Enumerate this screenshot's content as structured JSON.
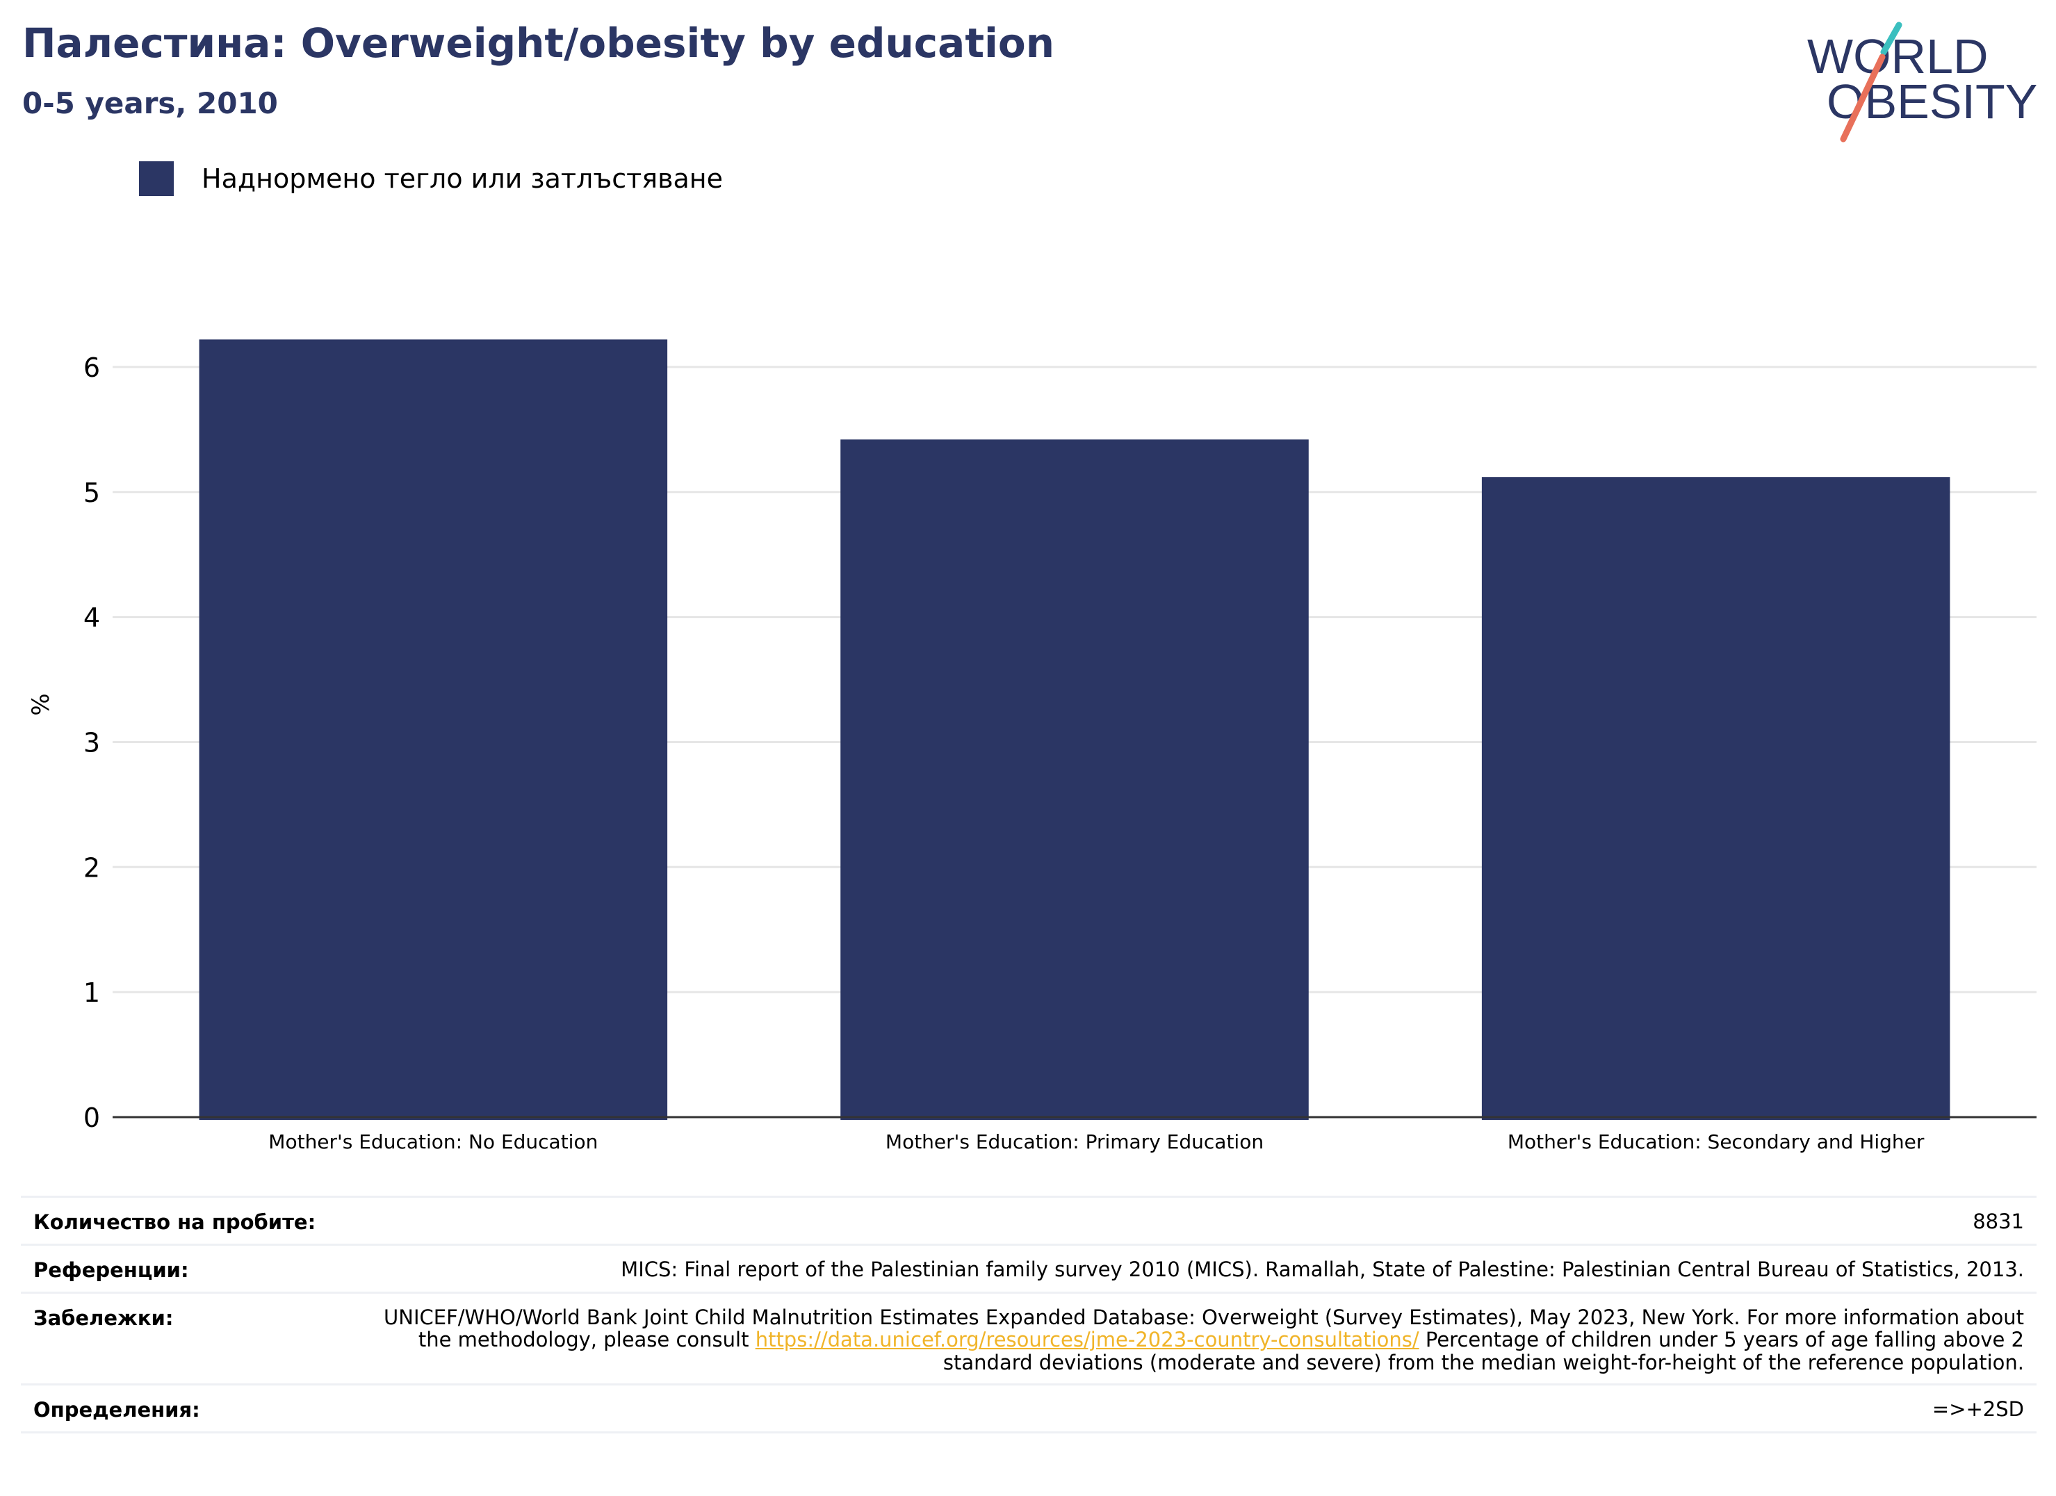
{
  "header": {
    "title": "Палестина: Overweight/obesity by education",
    "subtitle": "0-5 years, 2010"
  },
  "logo": {
    "line1": "WORLD",
    "line2": "OBESITY"
  },
  "colors": {
    "bar": "#2b3664",
    "title": "#2b3664",
    "grid": "#e6e6e6",
    "axis": "#333333",
    "link": "#f0b429",
    "logo_teal": "#3bbfbf",
    "logo_coral": "#e8705a"
  },
  "chart_data": {
    "type": "bar",
    "title": "",
    "xlabel": "",
    "ylabel": "%",
    "ylim": [
      0,
      6.6
    ],
    "yticks": [
      0,
      1,
      2,
      3,
      4,
      5,
      6
    ],
    "grid": true,
    "legend_position": "top-left",
    "categories": [
      "Mother's Education: No Education",
      "Mother's Education: Primary Education",
      "Mother's Education: Secondary and Higher"
    ],
    "series": [
      {
        "name": "Наднормено тегло или затлъстяване",
        "values": [
          6.22,
          5.42,
          5.12
        ]
      }
    ]
  },
  "info": {
    "sample_size_label": "Количество на пробите:",
    "sample_size_value": "8831",
    "references_label": "Референции:",
    "references_value": "MICS: Final report of the Palestinian family survey 2010 (MICS). Ramallah, State of Palestine: Palestinian Central Bureau of Statistics, 2013.",
    "notes_label": "Забележки:",
    "notes_text_before": "UNICEF/WHO/World Bank Joint Child Malnutrition Estimates Expanded Database: Overweight (Survey Estimates), May 2023, New York. For more information about the methodology, please consult ",
    "notes_link": "https://data.unicef.org/resources/jme-2023-country-consultations/",
    "notes_text_after": " Percentage of children under 5 years of age falling above 2 standard deviations (moderate and severe) from the median weight-for-height of the reference population.",
    "definitions_label": "Определения:",
    "definitions_value": "=>+2SD"
  }
}
